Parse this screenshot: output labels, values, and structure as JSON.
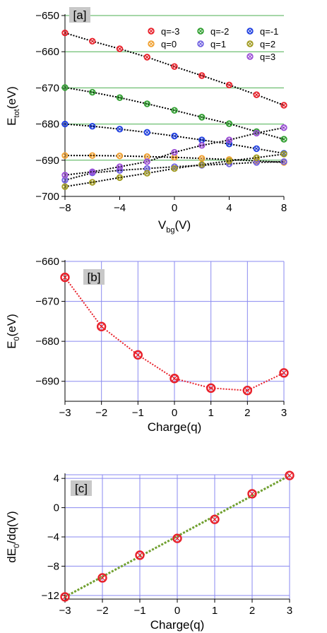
{
  "chart_data": [
    {
      "panel": "[a]",
      "type": "scatter",
      "ylabel": {
        "main": "E",
        "sub": "tot",
        "rest": "(eV)"
      },
      "xlabel": {
        "main": "V",
        "sub": "bg",
        "rest": "(V)"
      },
      "xlim": [
        -8,
        8
      ],
      "ylim": [
        -700,
        -650
      ],
      "xticks": [
        -8,
        -4,
        0,
        4,
        8
      ],
      "yticks": [
        -650,
        -660,
        -670,
        -680,
        -690,
        -700
      ],
      "grid": "horizontal",
      "legend_position": "top-right",
      "x": [
        -8,
        -6,
        -4,
        -2,
        0,
        2,
        4,
        6,
        8
      ],
      "series": [
        {
          "name": "q=-3",
          "color": "#e8202a",
          "values": [
            -654.8,
            -657.1,
            -659.2,
            -661.5,
            -664.1,
            -666.6,
            -669.2,
            -671.9,
            -674.8
          ]
        },
        {
          "name": "q=-2",
          "color": "#2e9e2e",
          "values": [
            -669.9,
            -671.2,
            -672.7,
            -674.4,
            -676.2,
            -678.1,
            -679.9,
            -682.1,
            -684.2
          ]
        },
        {
          "name": "q=-1",
          "color": "#2040e0",
          "values": [
            -680.0,
            -680.6,
            -681.4,
            -682.3,
            -683.3,
            -684.4,
            -685.5,
            -686.8,
            -688.1
          ]
        },
        {
          "name": "q=0",
          "color": "#f0a030",
          "values": [
            -688.7,
            -688.7,
            -688.8,
            -689.0,
            -689.2,
            -689.5,
            -689.8,
            -690.2,
            -690.6
          ]
        },
        {
          "name": "q=1",
          "color": "#7060e0",
          "values": [
            -695.5,
            -693.5,
            -692.8,
            -692.3,
            -691.8,
            -691.4,
            -691.0,
            -690.6,
            -690.4
          ]
        },
        {
          "name": "q=2",
          "color": "#a09a20",
          "values": [
            -697.3,
            -696.1,
            -694.8,
            -693.6,
            -692.3,
            -691.2,
            -690.2,
            -689.3,
            -688.3
          ]
        },
        {
          "name": "q=3",
          "color": "#9b4fd6",
          "values": [
            -694.1,
            -693.2,
            -691.8,
            -690.4,
            -687.8,
            -685.9,
            -684.4,
            -682.5,
            -681.0
          ]
        }
      ]
    },
    {
      "panel": "[b]",
      "type": "line",
      "ylabel": {
        "main": "E",
        "sub": "0",
        "rest": "(eV)"
      },
      "xlabel": "Charge(q)",
      "xlim": [
        -3,
        3
      ],
      "ylim": [
        -695,
        -660
      ],
      "xticks": [
        -3,
        -2,
        -1,
        0,
        1,
        2,
        3
      ],
      "yticks": [
        -660,
        -670,
        -680,
        -690
      ],
      "grid": "both",
      "x": [
        -3,
        -2,
        -1,
        0,
        1,
        2,
        3
      ],
      "series": [
        {
          "color": "#e8202a",
          "values": [
            -664.0,
            -676.3,
            -683.4,
            -689.3,
            -691.7,
            -692.3,
            -687.9
          ]
        }
      ]
    },
    {
      "panel": "[c]",
      "type": "scatter",
      "ylabel": {
        "main": "dE",
        "sub": "0",
        "rest": "/dq(V)"
      },
      "xlabel": "Charge(q)",
      "xlim": [
        -3,
        3
      ],
      "ylim": [
        -12.5,
        4.5
      ],
      "xticks": [
        -3,
        -2,
        -1,
        0,
        1,
        2,
        3
      ],
      "yticks": [
        4,
        0,
        -4,
        -8,
        -12
      ],
      "grid": "both",
      "x": [
        -3,
        -2,
        -1,
        0,
        1,
        2,
        3
      ],
      "series": [
        {
          "color": "#e8202a",
          "values": [
            -12.2,
            -9.6,
            -6.5,
            -4.2,
            -1.6,
            1.9,
            4.4
          ]
        }
      ],
      "fit": {
        "color": "#70a030",
        "x": [
          -3,
          3
        ],
        "y": [
          -12.2,
          4.4
        ]
      }
    }
  ]
}
